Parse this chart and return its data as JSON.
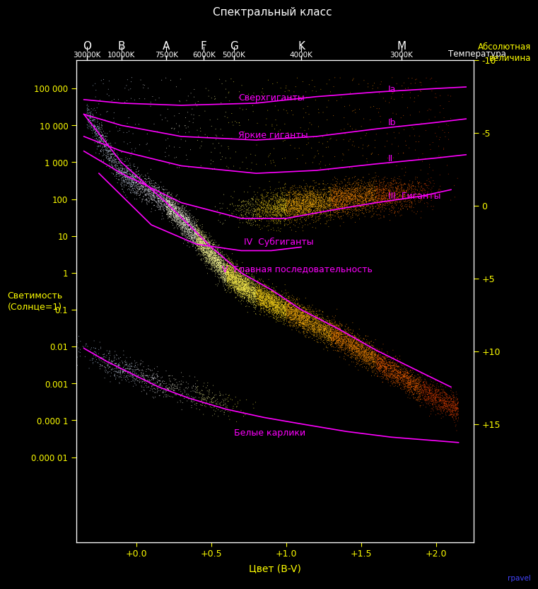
{
  "title": "Спектральный класс",
  "xlabel": "Цвет (B-V)",
  "ylabel": "Светимость\n(Солнце=1)",
  "ylabel2": "Абсолютная\nвеличина",
  "bg_color": "#000000",
  "text_color": "#ffff00",
  "axis_color": "#ffffff",
  "xlim": [
    -0.4,
    2.25
  ],
  "ylim": [
    5e-08,
    600000.0
  ],
  "spectral_classes": {
    "labels": [
      "O",
      "B",
      "A",
      "F",
      "G",
      "K",
      "M"
    ],
    "colors": [
      "#00ffff",
      "#aaaaff",
      "#ffffff",
      "#ffffff",
      "#ffff00",
      "#ffaa00",
      "#ff4400"
    ],
    "bv_positions": [
      -0.33,
      -0.1,
      0.2,
      0.45,
      0.65,
      1.1,
      1.77
    ]
  },
  "temperature_labels": [
    "30000K",
    "10000K",
    "7500K",
    "6000K",
    "5000K",
    "4000K",
    "3000K"
  ],
  "temperature_bv": [
    -0.33,
    -0.1,
    0.2,
    0.45,
    0.65,
    1.1,
    1.77
  ],
  "temperature_label": "Температура",
  "luminosity_ticks": [
    100000,
    10000,
    1000,
    100,
    10,
    1,
    0.1,
    0.01,
    0.001,
    0.0001,
    1e-05
  ],
  "luminosity_labels": [
    "100 000",
    "10 000",
    "1 000",
    "100",
    "10",
    "1",
    "0.1",
    "0.01",
    "0.001",
    "0.000 1",
    "0.000 01"
  ],
  "xtick_vals": [
    0.0,
    0.5,
    1.0,
    1.5,
    2.0
  ],
  "xtick_labels": [
    "+0.0",
    "+0.5",
    "+1.0",
    "+1.5",
    "+2.0"
  ],
  "abs_mag_ticks": [
    -10,
    -5,
    0,
    5,
    10,
    15
  ],
  "curve_color": "#ff00ff",
  "curve_linewidth": 1.2,
  "credit_text": "rpavel",
  "credit_color": "#4444ff",
  "curves": {
    "Ia": {
      "bv": [
        -0.35,
        -0.1,
        0.3,
        0.8,
        1.2,
        1.6,
        2.0,
        2.2
      ],
      "lum": [
        50000,
        40000,
        35000,
        40000,
        60000,
        80000,
        100000,
        110000
      ],
      "label_bv": 1.68,
      "label_lum": 95000,
      "label": "Ia"
    },
    "Ib": {
      "bv": [
        -0.35,
        -0.1,
        0.3,
        0.8,
        1.2,
        1.6,
        2.0,
        2.2
      ],
      "lum": [
        20000,
        10000,
        5000,
        4000,
        5000,
        8000,
        12000,
        15000
      ],
      "label_bv": 1.68,
      "label_lum": 12000,
      "label": "Ib"
    },
    "II": {
      "bv": [
        -0.35,
        -0.1,
        0.3,
        0.8,
        1.2,
        1.6,
        2.0,
        2.2
      ],
      "lum": [
        5000,
        2000,
        800,
        500,
        600,
        900,
        1300,
        1600
      ],
      "label_bv": 1.68,
      "label_lum": 1250,
      "label": "II"
    },
    "III": {
      "bv": [
        -0.35,
        -0.1,
        0.3,
        0.7,
        1.0,
        1.3,
        1.6,
        1.9,
        2.1
      ],
      "lum": [
        2000,
        500,
        80,
        30,
        30,
        50,
        80,
        120,
        180
      ],
      "label_bv": 1.68,
      "label_lum": 120,
      "label": "III"
    },
    "IV": {
      "bv": [
        -0.25,
        0.1,
        0.4,
        0.7,
        0.9,
        1.1
      ],
      "lum": [
        500,
        20,
        6,
        4,
        4,
        5
      ],
      "label_bv": 0.7,
      "label_lum": 7,
      "label": "IV"
    },
    "V": {
      "bv": [
        -0.35,
        -0.1,
        0.2,
        0.5,
        0.7,
        0.9,
        1.1,
        1.35,
        1.6,
        1.9,
        2.1
      ],
      "lum": [
        20000,
        1000,
        80,
        5,
        1.0,
        0.35,
        0.1,
        0.03,
        0.008,
        0.002,
        0.0008
      ],
      "label_bv": 0.57,
      "label_lum": 0.38,
      "label": "V"
    },
    "WD": {
      "bv": [
        -0.35,
        -0.2,
        -0.05,
        0.15,
        0.35,
        0.6,
        0.85,
        1.1,
        1.4,
        1.7,
        2.0,
        2.15
      ],
      "lum": [
        0.009,
        0.004,
        0.002,
        0.0008,
        0.0004,
        0.0002,
        0.00012,
        8e-05,
        5e-05,
        3.5e-05,
        2.8e-05,
        2.5e-05
      ],
      "label_bv": 0.65,
      "label_lum": 4.5e-05,
      "label": "Белые карлики"
    }
  },
  "text_labels": [
    {
      "text": "Сверхгиганты",
      "bv": 0.68,
      "lum": 60000,
      "fontsize": 9
    },
    {
      "text": "Яркие гиганты",
      "bv": 0.68,
      "lum": 6000,
      "fontsize": 9
    },
    {
      "text": "Гиганты",
      "bv": 1.82,
      "lum": 120,
      "fontsize": 9
    },
    {
      "text": "Субгиганты",
      "bv": 0.72,
      "lum": 12,
      "fontsize": 9
    },
    {
      "text": "Главная последовательность",
      "bv": 0.65,
      "lum": 0.27,
      "fontsize": 9
    },
    {
      "text": "Белые карлики",
      "bv": 0.22,
      "lum": 4.5e-05,
      "fontsize": 9
    }
  ]
}
